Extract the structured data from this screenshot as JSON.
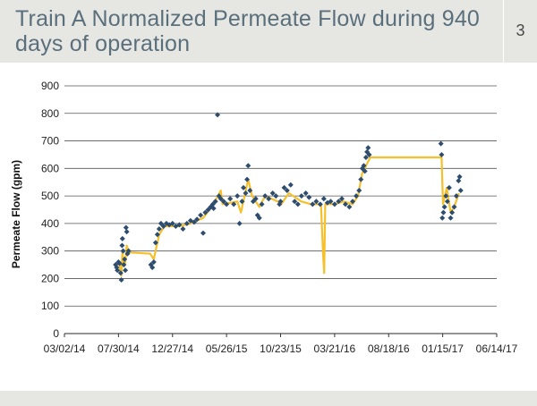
{
  "header": {
    "title": "Train A Normalized Permeate Flow during 940 days of operation",
    "page_number": "3"
  },
  "colors": {
    "header_bg": "#e6e6e3",
    "title": "#5a6f7c",
    "points": "#2e4d6e",
    "line": "#f5c02a",
    "grid": "#555555"
  },
  "chart_data": {
    "type": "scatter",
    "title": "",
    "xlabel": "",
    "ylabel": "Permeate Flow (gpm)",
    "ylim": [
      0,
      900
    ],
    "yticks": [
      "0",
      "100",
      "200",
      "300",
      "400",
      "500",
      "600",
      "700",
      "800",
      "900"
    ],
    "xlim": [
      "2014-03-02",
      "2017-06-14"
    ],
    "xticks": [
      "03/02/14",
      "07/30/14",
      "12/27/14",
      "05/26/15",
      "10/23/15",
      "03/21/16",
      "08/18/16",
      "01/15/17",
      "06/14/17"
    ],
    "grid": "horizontal",
    "series": [
      {
        "marker": "diamond",
        "color": "#2e4d6e",
        "points": [
          [
            "2014-07-22",
            250
          ],
          [
            "2014-07-25",
            240
          ],
          [
            "2014-07-27",
            230
          ],
          [
            "2014-07-30",
            260
          ],
          [
            "2014-08-02",
            255
          ],
          [
            "2014-08-05",
            220
          ],
          [
            "2014-08-07",
            195
          ],
          [
            "2014-08-09",
            320
          ],
          [
            "2014-08-10",
            345
          ],
          [
            "2014-08-12",
            300
          ],
          [
            "2014-08-14",
            250
          ],
          [
            "2014-08-16",
            270
          ],
          [
            "2014-08-18",
            230
          ],
          [
            "2014-08-20",
            385
          ],
          [
            "2014-08-22",
            370
          ],
          [
            "2014-08-24",
            290
          ],
          [
            "2014-08-27",
            300
          ],
          [
            "2014-10-28",
            250
          ],
          [
            "2014-11-01",
            240
          ],
          [
            "2014-11-05",
            260
          ],
          [
            "2014-11-10",
            330
          ],
          [
            "2014-11-15",
            360
          ],
          [
            "2014-11-20",
            380
          ],
          [
            "2014-11-25",
            400
          ],
          [
            "2014-12-02",
            390
          ],
          [
            "2014-12-10",
            400
          ],
          [
            "2014-12-18",
            395
          ],
          [
            "2014-12-27",
            400
          ],
          [
            "2015-01-05",
            390
          ],
          [
            "2015-01-15",
            395
          ],
          [
            "2015-01-25",
            380
          ],
          [
            "2015-02-05",
            400
          ],
          [
            "2015-02-15",
            410
          ],
          [
            "2015-02-25",
            405
          ],
          [
            "2015-03-05",
            415
          ],
          [
            "2015-03-15",
            430
          ],
          [
            "2015-03-22",
            365
          ],
          [
            "2015-03-28",
            440
          ],
          [
            "2015-04-05",
            450
          ],
          [
            "2015-04-12",
            460
          ],
          [
            "2015-04-18",
            470
          ],
          [
            "2015-04-20",
            455
          ],
          [
            "2015-04-25",
            480
          ],
          [
            "2015-05-01",
            795
          ],
          [
            "2015-05-05",
            500
          ],
          [
            "2015-05-10",
            490
          ],
          [
            "2015-05-18",
            480
          ],
          [
            "2015-05-26",
            470
          ],
          [
            "2015-06-05",
            490
          ],
          [
            "2015-06-15",
            470
          ],
          [
            "2015-06-25",
            500
          ],
          [
            "2015-07-01",
            400
          ],
          [
            "2015-07-08",
            480
          ],
          [
            "2015-07-12",
            530
          ],
          [
            "2015-07-18",
            510
          ],
          [
            "2015-07-22",
            560
          ],
          [
            "2015-07-25",
            610
          ],
          [
            "2015-07-30",
            520
          ],
          [
            "2015-08-08",
            480
          ],
          [
            "2015-08-15",
            490
          ],
          [
            "2015-08-20",
            430
          ],
          [
            "2015-08-25",
            420
          ],
          [
            "2015-09-01",
            470
          ],
          [
            "2015-09-10",
            500
          ],
          [
            "2015-09-20",
            490
          ],
          [
            "2015-10-01",
            510
          ],
          [
            "2015-10-10",
            500
          ],
          [
            "2015-10-20",
            470
          ],
          [
            "2015-10-23",
            480
          ],
          [
            "2015-11-02",
            530
          ],
          [
            "2015-11-10",
            520
          ],
          [
            "2015-11-20",
            540
          ],
          [
            "2015-12-01",
            480
          ],
          [
            "2015-12-10",
            470
          ],
          [
            "2015-12-20",
            500
          ],
          [
            "2016-01-01",
            510
          ],
          [
            "2016-01-10",
            495
          ],
          [
            "2016-01-20",
            470
          ],
          [
            "2016-01-30",
            480
          ],
          [
            "2016-02-10",
            470
          ],
          [
            "2016-02-20",
            490
          ],
          [
            "2016-03-01",
            475
          ],
          [
            "2016-03-10",
            480
          ],
          [
            "2016-03-21",
            470
          ],
          [
            "2016-04-01",
            480
          ],
          [
            "2016-04-10",
            490
          ],
          [
            "2016-04-20",
            470
          ],
          [
            "2016-05-01",
            460
          ],
          [
            "2016-05-10",
            480
          ],
          [
            "2016-05-20",
            500
          ],
          [
            "2016-05-28",
            520
          ],
          [
            "2016-06-02",
            560
          ],
          [
            "2016-06-06",
            600
          ],
          [
            "2016-06-10",
            610
          ],
          [
            "2016-06-13",
            590
          ],
          [
            "2016-06-16",
            640
          ],
          [
            "2016-06-19",
            660
          ],
          [
            "2016-06-22",
            675
          ],
          [
            "2016-06-25",
            650
          ],
          [
            "2017-01-10",
            690
          ],
          [
            "2017-01-12",
            650
          ],
          [
            "2017-01-14",
            420
          ],
          [
            "2017-01-17",
            440
          ],
          [
            "2017-01-20",
            460
          ],
          [
            "2017-01-24",
            500
          ],
          [
            "2017-01-28",
            480
          ],
          [
            "2017-02-02",
            530
          ],
          [
            "2017-02-06",
            420
          ],
          [
            "2017-02-10",
            440
          ],
          [
            "2017-02-16",
            460
          ],
          [
            "2017-02-22",
            500
          ],
          [
            "2017-02-28",
            555
          ],
          [
            "2017-03-03",
            570
          ],
          [
            "2017-03-06",
            520
          ]
        ]
      },
      {
        "marker": "line",
        "color": "#f5c02a",
        "points": [
          [
            "2014-07-22",
            250
          ],
          [
            "2014-08-01",
            255
          ],
          [
            "2014-08-07",
            210
          ],
          [
            "2014-08-10",
            300
          ],
          [
            "2014-08-14",
            245
          ],
          [
            "2014-08-18",
            260
          ],
          [
            "2014-08-22",
            320
          ],
          [
            "2014-08-27",
            295
          ],
          [
            "2014-10-26",
            290
          ],
          [
            "2014-11-05",
            270
          ],
          [
            "2014-11-20",
            360
          ],
          [
            "2014-12-05",
            390
          ],
          [
            "2015-01-15",
            390
          ],
          [
            "2015-02-15",
            400
          ],
          [
            "2015-03-22",
            420
          ],
          [
            "2015-04-20",
            470
          ],
          [
            "2015-05-10",
            520
          ],
          [
            "2015-05-15",
            470
          ],
          [
            "2015-06-25",
            480
          ],
          [
            "2015-07-05",
            440
          ],
          [
            "2015-07-25",
            560
          ],
          [
            "2015-08-05",
            500
          ],
          [
            "2015-08-25",
            460
          ],
          [
            "2015-09-10",
            500
          ],
          [
            "2015-10-15",
            480
          ],
          [
            "2015-10-25",
            470
          ],
          [
            "2015-11-15",
            510
          ],
          [
            "2015-12-20",
            480
          ],
          [
            "2016-01-15",
            470
          ],
          [
            "2016-02-12",
            470
          ],
          [
            "2016-02-18",
            290
          ],
          [
            "2016-02-21",
            220
          ],
          [
            "2016-02-24",
            470
          ],
          [
            "2016-03-21",
            470
          ],
          [
            "2016-04-15",
            480
          ],
          [
            "2016-05-10",
            470
          ],
          [
            "2016-05-25",
            500
          ],
          [
            "2016-06-05",
            580
          ],
          [
            "2016-06-20",
            620
          ],
          [
            "2016-06-28",
            640
          ],
          [
            "2017-01-12",
            640
          ],
          [
            "2017-01-16",
            470
          ],
          [
            "2017-01-26",
            530
          ],
          [
            "2017-02-06",
            440
          ],
          [
            "2017-02-16",
            460
          ],
          [
            "2017-03-01",
            510
          ]
        ]
      }
    ]
  }
}
